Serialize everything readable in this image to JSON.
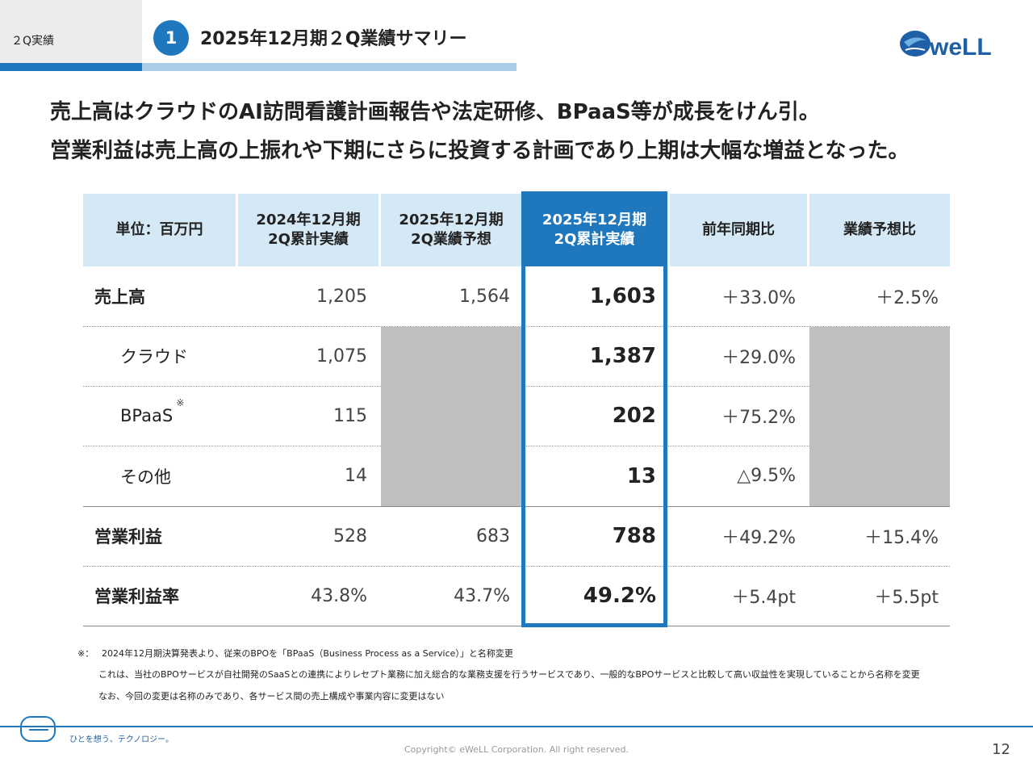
{
  "header": {
    "section_label": "２Q実績",
    "number": "1",
    "title": "2025年12月期２Q業績サマリー",
    "logo_text": "eWeLL"
  },
  "headline": {
    "line1": "売上高はクラウドのAI訪問看護計画報告や法定研修、BPaaS等が成長をけん引。",
    "line2": "営業利益は売上高の上振れや下期にさらに投資する計画であり上期は大幅な増益となった。"
  },
  "table": {
    "headers": {
      "unit": "単位：百万円",
      "prev_actual": [
        "2024年12月期",
        "2Q累計実績"
      ],
      "forecast": [
        "2025年12月期",
        "2Q業績予想"
      ],
      "current_actual": [
        "2025年12月期",
        "2Q累計実績"
      ],
      "yoy": "前年同期比",
      "vs_forecast": "業績予想比"
    },
    "rows": [
      {
        "label": "売上高",
        "prev": "1,205",
        "forecast": "1,564",
        "actual": "1,603",
        "yoy": "＋33.0%",
        "vs_forecast": "＋2.5%"
      },
      {
        "label": "クラウド",
        "prev": "1,075",
        "forecast": "",
        "actual": "1,387",
        "yoy": "＋29.0%",
        "vs_forecast": ""
      },
      {
        "label": "BPaaS",
        "mark": "※",
        "prev": "115",
        "forecast": "",
        "actual": "202",
        "yoy": "＋75.2%",
        "vs_forecast": ""
      },
      {
        "label": "その他",
        "prev": "14",
        "forecast": "",
        "actual": "13",
        "yoy": "△9.5%",
        "vs_forecast": ""
      },
      {
        "label": "営業利益",
        "prev": "528",
        "forecast": "683",
        "actual": "788",
        "yoy": "＋49.2%",
        "vs_forecast": "＋15.4%"
      },
      {
        "label": "営業利益率",
        "prev": "43.8%",
        "forecast": "43.7%",
        "actual": "49.2%",
        "yoy": "＋5.4pt",
        "vs_forecast": "＋5.5pt"
      }
    ]
  },
  "notes": {
    "mark": "※：",
    "line1": "2024年12月期決算発表より、従来のBPOを「BPaaS（Business Process as a Service）」と名称変更",
    "line2": "これは、当社のBPOサービスが自社開発のSaaSとの連携によりレセプト業務に加え総合的な業務支援を行うサービスであり、一般的なBPOサービスと比較して高い収益性を実現していることから名称を変更",
    "line3": "なお、今回の変更は名称のみであり、各サービス間の売上構成や事業内容に変更はない"
  },
  "footer": {
    "tagline": "ひとを想う、テクノロジー。",
    "copyright": "Copyright© eWeLL Corporation. All right reserved.",
    "page_number": "12"
  },
  "colors": {
    "accent": "#1f78bd",
    "header_cell": "#d5e8f6",
    "grey_fill": "#bfbfbf"
  }
}
